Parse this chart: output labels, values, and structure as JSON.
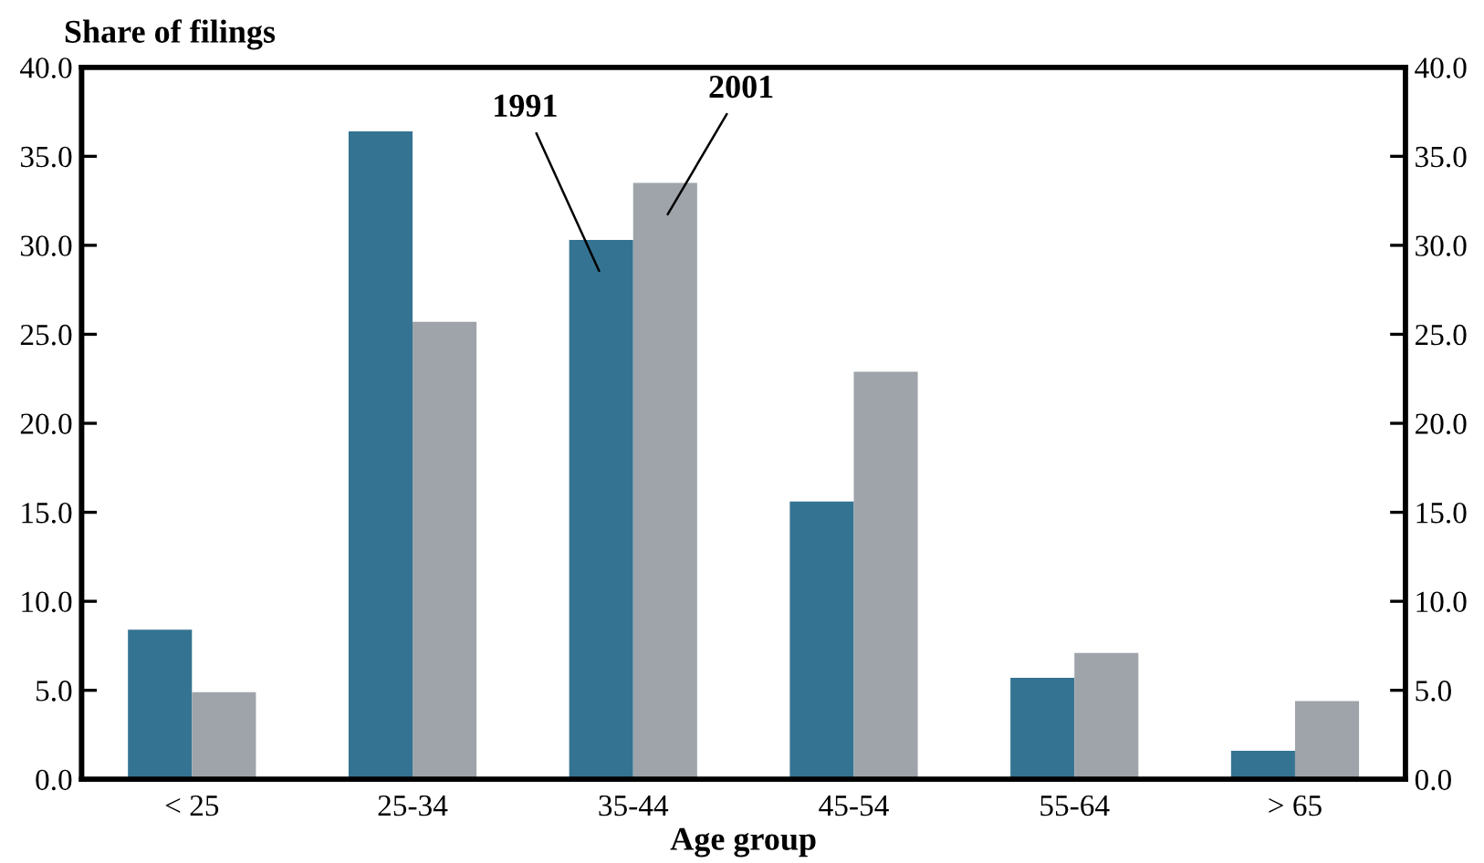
{
  "chart_data": {
    "type": "bar",
    "ylabel": "Share of filings",
    "xlabel": "Age group",
    "categories": [
      "< 25",
      "25-34",
      "35-44",
      "45-54",
      "55-64",
      "> 65"
    ],
    "series": [
      {
        "name": "1991",
        "color": "#357392",
        "values": [
          8.4,
          36.4,
          30.3,
          15.6,
          5.7,
          1.6
        ]
      },
      {
        "name": "2001",
        "color": "#9ea4aa",
        "values": [
          4.9,
          25.7,
          33.5,
          22.9,
          7.1,
          4.4
        ]
      }
    ],
    "ylim": [
      0,
      40
    ],
    "yticks": [
      {
        "value": 0,
        "label": "0.0"
      },
      {
        "value": 5,
        "label": "5.0"
      },
      {
        "value": 10,
        "label": "10.0"
      },
      {
        "value": 15,
        "label": "15.0"
      },
      {
        "value": 20,
        "label": "20.0"
      },
      {
        "value": 25,
        "label": "25.0"
      },
      {
        "value": 30,
        "label": "30.0"
      },
      {
        "value": 35,
        "label": "35.0"
      },
      {
        "value": 40,
        "label": "40.0"
      }
    ],
    "y2lim": [
      0,
      40
    ],
    "y2ticks": [
      {
        "value": 0,
        "label": "0.0"
      },
      {
        "value": 5,
        "label": "5.0"
      },
      {
        "value": 10,
        "label": "10.0"
      },
      {
        "value": 15,
        "label": "15.0"
      },
      {
        "value": 20,
        "label": "20.0"
      },
      {
        "value": 25,
        "label": "25.0"
      },
      {
        "value": 30,
        "label": "30.0"
      },
      {
        "value": 35,
        "label": "35.0"
      },
      {
        "value": 40,
        "label": "40.0"
      }
    ],
    "grid": false,
    "legend": false
  }
}
